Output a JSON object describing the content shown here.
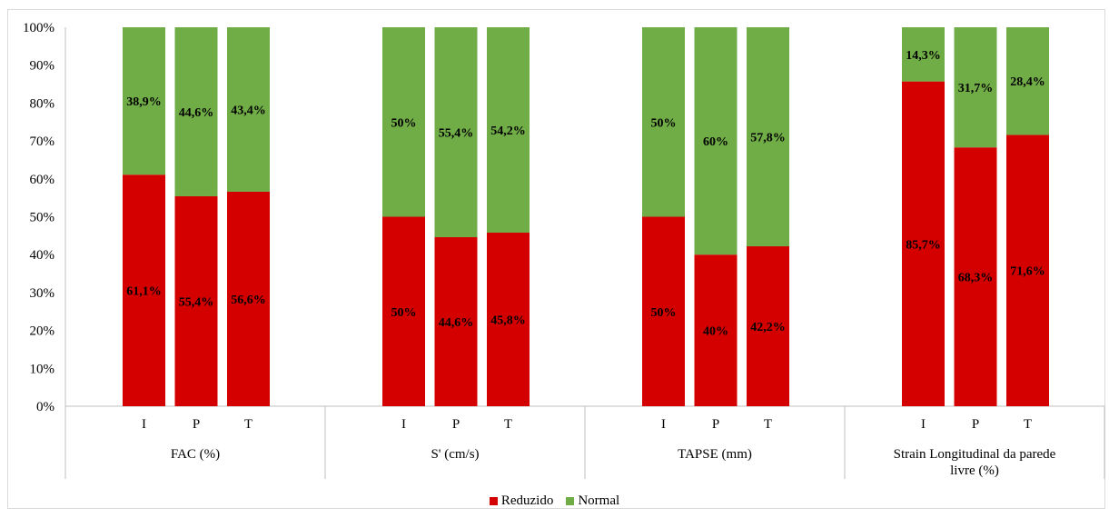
{
  "chart_data": {
    "type": "bar",
    "stacked": true,
    "percent": true,
    "groups": [
      {
        "label": "FAC (%)",
        "label_lines": [
          "FAC (%)"
        ],
        "categories": [
          "I",
          "P",
          "T"
        ]
      },
      {
        "label": "S' (cm/s)",
        "label_lines": [
          "S' (cm/s)"
        ],
        "categories": [
          "I",
          "P",
          "T"
        ]
      },
      {
        "label": "TAPSE (mm)",
        "label_lines": [
          "TAPSE (mm)"
        ],
        "categories": [
          "I",
          "P",
          "T"
        ]
      },
      {
        "label": "Strain Longitudinal da parede livre (%)",
        "label_lines": [
          "Strain Longitudinal da parede",
          "livre (%)"
        ],
        "categories": [
          "I",
          "P",
          "T"
        ]
      }
    ],
    "series": [
      {
        "name": "Reduzido",
        "color": "#d40000",
        "values": [
          61.1,
          55.4,
          56.6,
          50,
          44.6,
          45.8,
          50,
          40,
          42.2,
          85.7,
          68.3,
          71.6
        ],
        "labels": [
          "61,1%",
          "55,4%",
          "56,6%",
          "50%",
          "44,6%",
          "45,8%",
          "50%",
          "40%",
          "42,2%",
          "85,7%",
          "68,3%",
          "71,6%"
        ]
      },
      {
        "name": "Normal",
        "color": "#70ad47",
        "values": [
          38.9,
          44.6,
          43.4,
          50,
          55.4,
          54.2,
          50,
          60,
          57.8,
          14.3,
          31.7,
          28.4
        ],
        "labels": [
          "38,9%",
          "44,6%",
          "43,4%",
          "50%",
          "55,4%",
          "54,2%",
          "50%",
          "60%",
          "57,8%",
          "14,3%",
          "31,7%",
          "28,4%"
        ]
      }
    ],
    "ylim": [
      0,
      100
    ],
    "yticks": [
      "0%",
      "10%",
      "20%",
      "30%",
      "40%",
      "50%",
      "60%",
      "70%",
      "80%",
      "90%",
      "100%"
    ],
    "grid": false,
    "legend": "bottom-center"
  }
}
